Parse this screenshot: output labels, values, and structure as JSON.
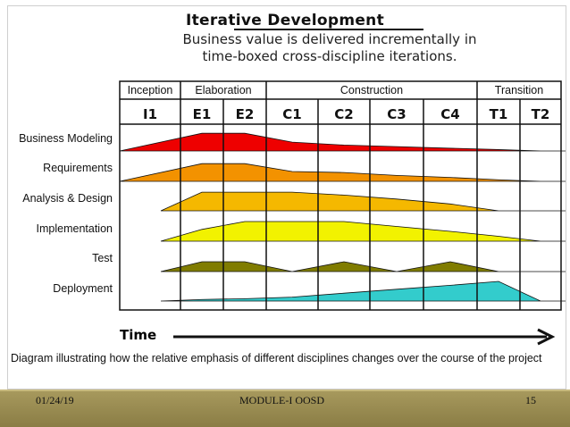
{
  "title": "Iterative Development",
  "subtitle_line1": "Business value is delivered incrementally in",
  "subtitle_line2": "time-boxed cross-discipline iterations.",
  "phases": [
    "Inception",
    "Elaboration",
    "Construction",
    "Transition"
  ],
  "iterations": [
    "I1",
    "E1",
    "E2",
    "C1",
    "C2",
    "C3",
    "C4",
    "T1",
    "T2"
  ],
  "disciplines": [
    {
      "label": "Business Modeling",
      "color": "#ee0000",
      "levels": [
        0.0,
        0.9,
        0.9,
        0.45,
        0.3,
        0.22,
        0.14,
        0.07,
        0.0
      ]
    },
    {
      "label": "Requirements",
      "color": "#f39200",
      "levels": [
        0.0,
        0.9,
        0.9,
        0.5,
        0.45,
        0.3,
        0.2,
        0.08,
        0.0
      ]
    },
    {
      "label": "Analysis & Design",
      "color": "#f5b800",
      "levels": [
        0.0,
        0.95,
        0.95,
        0.95,
        0.8,
        0.6,
        0.35,
        0.0,
        0.0
      ]
    },
    {
      "label": "Implementation",
      "color": "#f2f200",
      "levels": [
        0.0,
        0.6,
        1.0,
        1.0,
        1.0,
        0.75,
        0.5,
        0.25,
        0.0
      ]
    },
    {
      "label": "Test",
      "color": "#807c00",
      "levels": [
        0.0,
        0.5,
        0.5,
        0.0,
        0.5,
        0.0,
        0.5,
        0.0,
        0.0
      ]
    },
    {
      "label": "Deployment",
      "color": "#33cccc",
      "levels": [
        0.0,
        0.08,
        0.12,
        0.2,
        0.4,
        0.6,
        0.8,
        1.0,
        0.0
      ]
    }
  ],
  "time_label": "Time",
  "caption": "Diagram illustrating how the relative emphasis of different disciplines changes over the course of the project",
  "footer": {
    "date": "01/24/19",
    "module": "MODULE-I  OOSD",
    "page": "15"
  }
}
